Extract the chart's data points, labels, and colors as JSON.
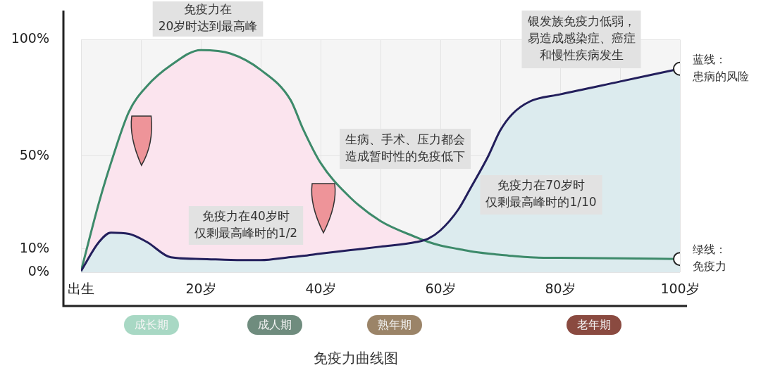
{
  "chart_data": {
    "type": "line",
    "title": "免疫力曲线图",
    "x": [
      0,
      3,
      5,
      8,
      11,
      15,
      20,
      25,
      30,
      35,
      37,
      40,
      45,
      50,
      56,
      58,
      60,
      63,
      65,
      68,
      70,
      72,
      75,
      80,
      90,
      100
    ],
    "xlim": [
      0,
      100
    ],
    "xticks": [
      {
        "value": 0,
        "label": "出生"
      },
      {
        "value": 10,
        "label": null
      },
      {
        "value": 20,
        "label": "20岁"
      },
      {
        "value": 30,
        "label": null
      },
      {
        "value": 40,
        "label": "40岁"
      },
      {
        "value": 50,
        "label": null
      },
      {
        "value": 60,
        "label": "60岁"
      },
      {
        "value": 70,
        "label": null
      },
      {
        "value": 80,
        "label": "80岁"
      },
      {
        "value": 90,
        "label": null
      },
      {
        "value": 100,
        "label": "100岁"
      }
    ],
    "ylim": [
      0,
      100
    ],
    "yticks": [
      {
        "value": 0,
        "label": "0%"
      },
      {
        "value": 10,
        "label": "10%"
      },
      {
        "value": 50,
        "label": "50%"
      },
      {
        "value": 100,
        "label": "100%"
      }
    ],
    "grid": true,
    "series": [
      {
        "name": "绿线：免疫力",
        "type": "area",
        "color": "#3d8a6a",
        "values": [
          0.5,
          30,
          47,
          69,
          80,
          89,
          95.5,
          94,
          87,
          74,
          62,
          47,
          32,
          22,
          15,
          13,
          11.5,
          10,
          9,
          8,
          7.5,
          7,
          6.4,
          6.2,
          6,
          5.7
        ]
      },
      {
        "name": "蓝线：患病的风险",
        "type": "area",
        "color": "#231f5c",
        "values": [
          0.5,
          13,
          17,
          16.5,
          13,
          6.4,
          5.7,
          5.3,
          5.2,
          6.5,
          7,
          8,
          9.5,
          11,
          13,
          14.5,
          18,
          27,
          36,
          50,
          61,
          68,
          73.5,
          76.5,
          82,
          87.5
        ]
      }
    ],
    "annotations": [
      "免疫力在",
      "20岁时达到最高峰",
      "生病、手术、压力都会",
      "造成暂时性的免疫低下",
      "免疫力在40岁时",
      "仅剩最高峰时的1/2",
      "免疫力在70岁时",
      "仅剩最高峰时的1/10",
      "银发族免疫力低弱，",
      "易造成感染症、癌症",
      "和慢性疾病发生",
      "成长期",
      "成人期",
      "熟年期",
      "老年期"
    ]
  }
}
